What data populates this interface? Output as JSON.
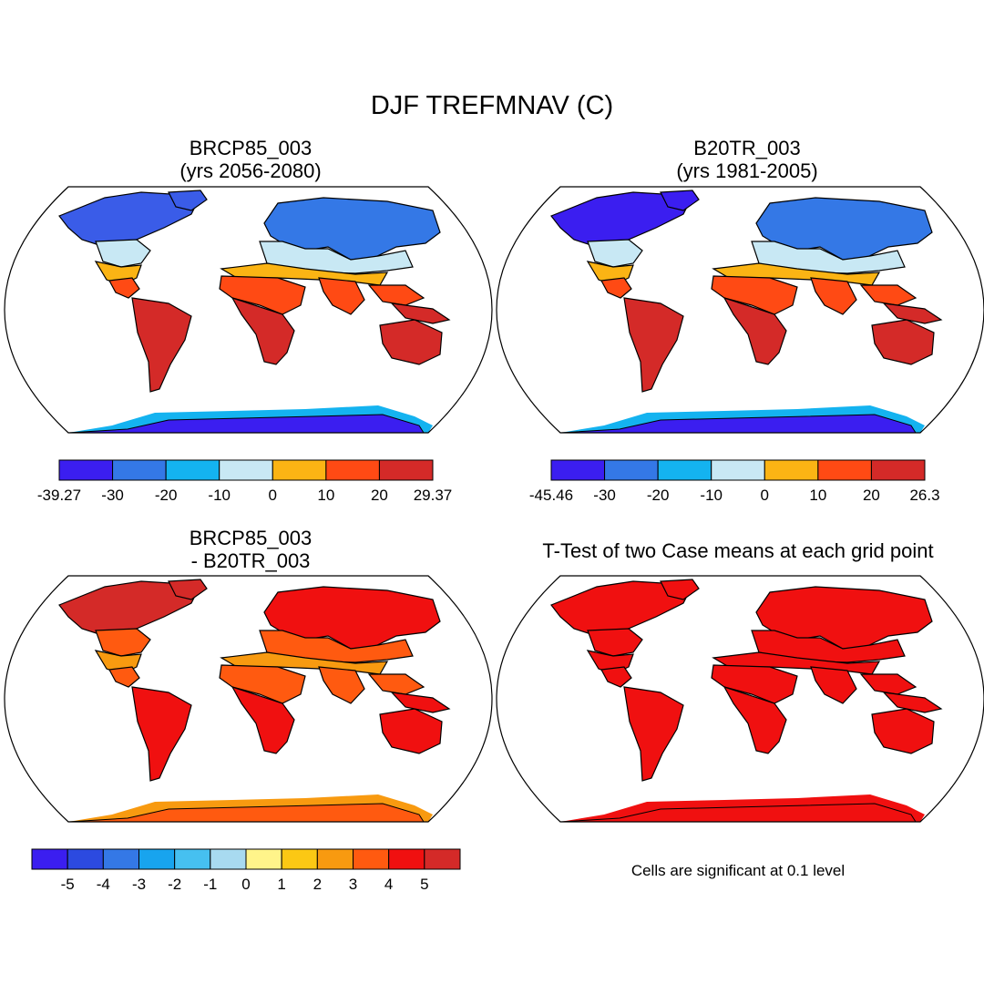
{
  "title": "DJF TREFMNAV (C)",
  "panels": [
    {
      "title_line1": "BRCP85_003",
      "title_line2": "(yrs 2056-2080)"
    },
    {
      "title_line1": "B20TR_003",
      "title_line2": "(yrs 1981-2005)"
    },
    {
      "title_line1": "BRCP85_003",
      "title_line2": "- B20TR_003"
    },
    {
      "title_line1": "T-Test of two Case means at each grid point",
      "title_line2": ""
    }
  ],
  "significance_note": "Cells are significant at 0.1 level",
  "colorbars": [
    {
      "labels": [
        "-39.27",
        "-30",
        "-20",
        "-10",
        "0",
        "10",
        "20",
        "29.37"
      ],
      "colors": [
        "#3b1ef0",
        "#3478e6",
        "#14b3f0",
        "#c8e8f4",
        "#fbb414",
        "#ff4a14",
        "#d42a28"
      ]
    },
    {
      "labels": [
        "-45.46",
        "-30",
        "-20",
        "-10",
        "0",
        "10",
        "20",
        "26.3"
      ],
      "colors": [
        "#3b1ef0",
        "#3478e6",
        "#14b3f0",
        "#c8e8f4",
        "#fbb414",
        "#ff4a14",
        "#d42a28"
      ]
    },
    {
      "labels": [
        "-5",
        "-4",
        "-3",
        "-2",
        "-1",
        "0",
        "1",
        "2",
        "3",
        "4",
        "5"
      ],
      "colors": [
        "#3b1ef0",
        "#2c4ae0",
        "#3478e6",
        "#18a4ee",
        "#46c0f0",
        "#a8daf0",
        "#fff48a",
        "#fbc814",
        "#f89a10",
        "#ff5a10",
        "#f01010",
        "#d42a28"
      ]
    }
  ],
  "map_colors": {
    "panel1": {
      "north": "#3a5ce8",
      "north2": "#3478e6",
      "mid": "#c8e8f4",
      "subtrop": "#fbb414",
      "tropics": "#ff4a14",
      "deep": "#d42a28",
      "antarctica": "#3b1ef0",
      "antarctica_edge": "#14b3f0"
    },
    "panel2": {
      "north": "#3b1ef0",
      "north2": "#3478e6",
      "mid": "#c8e8f4",
      "subtrop": "#fbb414",
      "tropics": "#ff4a14",
      "deep": "#d42a28",
      "antarctica": "#3b1ef0",
      "antarctica_edge": "#14b3f0"
    },
    "panel3": {
      "north": "#d42a28",
      "north2": "#f01010",
      "mid": "#ff5a10",
      "subtrop": "#f89a10",
      "tropics": "#ff5a10",
      "deep": "#f01010",
      "antarctica": "#ff5a10",
      "antarctica_edge": "#f89a10"
    },
    "panel4": {
      "north": "#f01010",
      "north2": "#f01010",
      "mid": "#f01010",
      "subtrop": "#f01010",
      "tropics": "#f01010",
      "deep": "#f01010",
      "antarctica": "#f01010",
      "antarctica_edge": "#f01010"
    }
  }
}
